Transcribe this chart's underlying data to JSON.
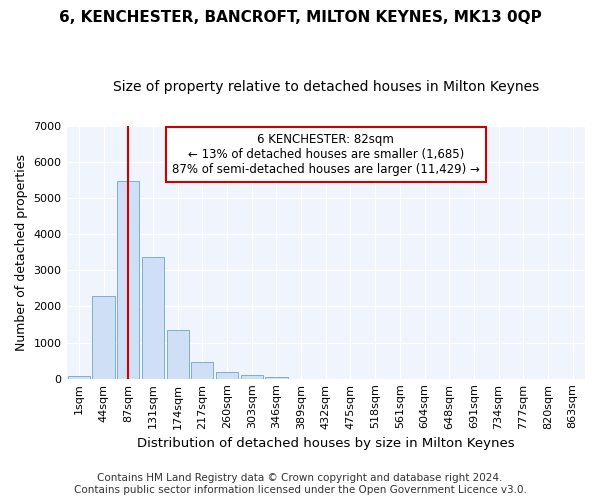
{
  "title": "6, KENCHESTER, BANCROFT, MILTON KEYNES, MK13 0QP",
  "subtitle": "Size of property relative to detached houses in Milton Keynes",
  "xlabel": "Distribution of detached houses by size in Milton Keynes",
  "ylabel": "Number of detached properties",
  "footer_line1": "Contains HM Land Registry data © Crown copyright and database right 2024.",
  "footer_line2": "Contains public sector information licensed under the Open Government Licence v3.0.",
  "annotation_title": "6 KENCHESTER: 82sqm",
  "annotation_line1": "← 13% of detached houses are smaller (1,685)",
  "annotation_line2": "87% of semi-detached houses are larger (11,429) →",
  "bar_categories": [
    "1sqm",
    "44sqm",
    "87sqm",
    "131sqm",
    "174sqm",
    "217sqm",
    "260sqm",
    "303sqm",
    "346sqm",
    "389sqm",
    "432sqm",
    "475sqm",
    "518sqm",
    "561sqm",
    "604sqm",
    "648sqm",
    "691sqm",
    "734sqm",
    "777sqm",
    "820sqm",
    "863sqm"
  ],
  "bar_values": [
    80,
    2280,
    5480,
    3380,
    1340,
    450,
    175,
    100,
    50,
    0,
    0,
    0,
    0,
    0,
    0,
    0,
    0,
    0,
    0,
    0,
    0
  ],
  "bar_color": "#cfdff5",
  "bar_edge_color": "#7bafd4",
  "vline_color": "#cc0000",
  "vline_x": 2.0,
  "ylim": [
    0,
    7000
  ],
  "yticks": [
    0,
    1000,
    2000,
    3000,
    4000,
    5000,
    6000,
    7000
  ],
  "bg_color": "#ffffff",
  "plot_bg_color": "#f0f4fc",
  "annotation_box_color": "#ffffff",
  "annotation_box_edge_color": "#cc0000",
  "title_fontsize": 11,
  "subtitle_fontsize": 10,
  "xlabel_fontsize": 9.5,
  "ylabel_fontsize": 9,
  "tick_fontsize": 8,
  "footer_fontsize": 7.5
}
